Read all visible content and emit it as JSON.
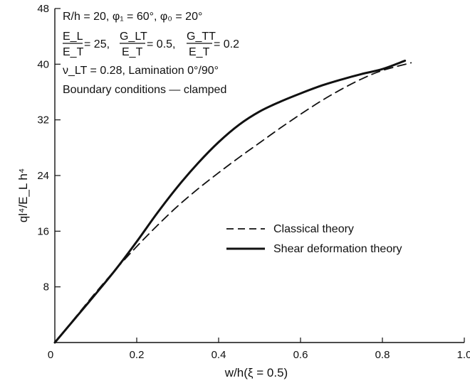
{
  "chart_data": {
    "type": "line",
    "xlabel": "w/h(ξ = 0.5)",
    "ylabel": "ql⁴/E_L h⁴",
    "xlim": [
      0,
      1.0
    ],
    "ylim": [
      0,
      48
    ],
    "xticks": [
      "0",
      "0.2",
      "0.4",
      "0.6",
      "0.8",
      "1.0"
    ],
    "xtick_values": [
      0,
      0.2,
      0.4,
      0.6,
      0.8,
      1.0
    ],
    "yticks": [
      "8",
      "16",
      "24",
      "32",
      "40",
      "48"
    ],
    "ytick_values": [
      8,
      16,
      24,
      32,
      40,
      48
    ],
    "grid": false,
    "legend_position": "center-right",
    "annotations": {
      "line1": "R/h = 20, φ₁ = 60°, φ₀ = 20°",
      "ratio1_num": "E_L",
      "ratio1_den": "E_T",
      "ratio1_val": "= 25,",
      "ratio2_num": "G_LT",
      "ratio2_den": "E_T",
      "ratio2_val": "= 0.5,",
      "ratio3_num": "G_TT",
      "ratio3_den": "E_T",
      "ratio3_val": "= 0.2",
      "line3": "ν_LT = 0.28, Lamination 0°/90°",
      "line4": "Boundary conditions — clamped"
    },
    "series": [
      {
        "name": "Classical theory",
        "style": "dashed",
        "x": [
          0,
          0.05,
          0.1,
          0.15,
          0.2,
          0.25,
          0.3,
          0.35,
          0.4,
          0.45,
          0.5,
          0.55,
          0.6,
          0.65,
          0.7,
          0.75,
          0.8,
          0.87
        ],
        "y": [
          0,
          3.6,
          7.2,
          10.6,
          13.8,
          16.8,
          19.6,
          22.1,
          24.4,
          26.6,
          28.7,
          30.8,
          32.8,
          34.7,
          36.4,
          37.9,
          39.1,
          40.2
        ]
      },
      {
        "name": "Shear deformation theory",
        "style": "solid",
        "x": [
          0,
          0.05,
          0.1,
          0.15,
          0.2,
          0.25,
          0.3,
          0.35,
          0.4,
          0.45,
          0.5,
          0.55,
          0.6,
          0.65,
          0.7,
          0.75,
          0.8,
          0.855
        ],
        "y": [
          0,
          3.5,
          7.0,
          10.6,
          14.5,
          18.6,
          22.4,
          25.8,
          28.8,
          31.3,
          33.2,
          34.6,
          35.8,
          36.9,
          37.8,
          38.6,
          39.3,
          40.5
        ]
      }
    ]
  }
}
